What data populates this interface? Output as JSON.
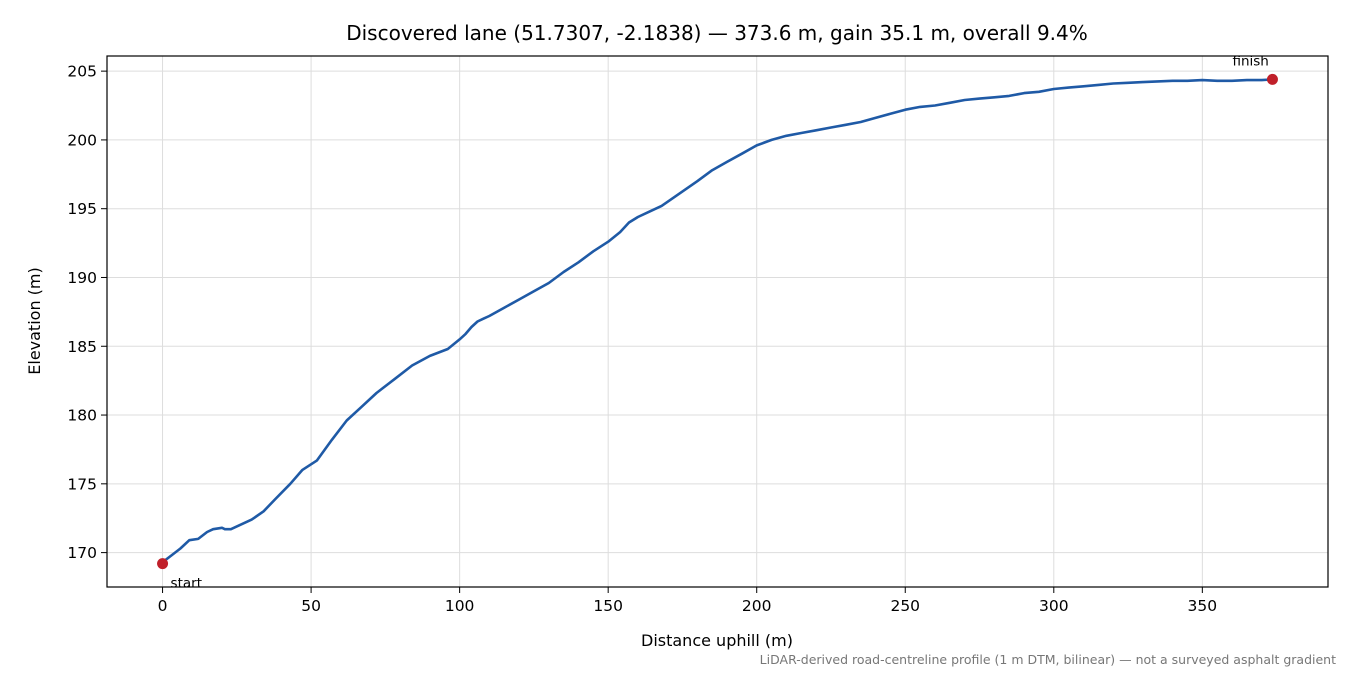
{
  "chart_data": {
    "type": "line",
    "title": "Discovered lane (51.7307, -2.1838) — 373.6 m, gain 35.1 m, overall 9.4%",
    "xlabel": "Distance uphill (m)",
    "ylabel": "Elevation (m)",
    "xlim": [
      -18.7,
      392.3
    ],
    "ylim": [
      167.5,
      206.1
    ],
    "xticks": [
      0,
      50,
      100,
      150,
      200,
      250,
      300,
      350
    ],
    "yticks": [
      170,
      175,
      180,
      185,
      190,
      195,
      200,
      205
    ],
    "grid": true,
    "line_color": "#1f5aa6",
    "marker_color": "#c0202a",
    "series": [
      {
        "x": [
          0,
          3,
          6,
          9,
          12,
          15,
          17,
          20,
          21,
          23,
          26,
          30,
          34,
          38,
          43,
          47,
          52,
          57,
          62,
          67,
          72,
          78,
          84,
          90,
          96,
          100,
          102,
          104,
          106,
          108,
          110,
          115,
          120,
          125,
          130,
          135,
          140,
          145,
          150,
          154,
          157,
          160,
          164,
          168,
          172,
          176,
          180,
          185,
          190,
          195,
          200,
          205,
          210,
          215,
          220,
          225,
          230,
          235,
          240,
          245,
          250,
          255,
          260,
          265,
          270,
          275,
          280,
          285,
          290,
          295,
          300,
          305,
          310,
          315,
          320,
          325,
          330,
          335,
          340,
          345,
          350,
          355,
          360,
          365,
          370,
          373.6
        ],
        "y": [
          169.3,
          169.8,
          170.3,
          170.9,
          171.0,
          171.5,
          171.7,
          171.8,
          171.7,
          171.7,
          172.0,
          172.4,
          173.0,
          173.9,
          175.0,
          176.0,
          176.7,
          178.2,
          179.6,
          180.6,
          181.6,
          182.6,
          183.6,
          184.3,
          184.8,
          185.5,
          185.9,
          186.4,
          186.8,
          187.0,
          187.2,
          187.8,
          188.4,
          189.0,
          189.6,
          190.4,
          191.1,
          191.9,
          192.6,
          193.3,
          194.0,
          194.4,
          194.8,
          195.2,
          195.8,
          196.4,
          197.0,
          197.8,
          198.4,
          199.0,
          199.6,
          200.0,
          200.3,
          200.5,
          200.7,
          200.9,
          201.1,
          201.3,
          201.6,
          201.9,
          202.2,
          202.4,
          202.5,
          202.7,
          202.9,
          203.0,
          203.1,
          203.2,
          203.4,
          203.5,
          203.7,
          203.8,
          203.9,
          204.0,
          204.1,
          204.15,
          204.2,
          204.25,
          204.3,
          204.3,
          204.35,
          204.3,
          204.3,
          204.35,
          204.35,
          204.4
        ]
      }
    ],
    "annotations": [
      {
        "text": "start",
        "x": 0,
        "y": 169.2
      },
      {
        "text": "finish",
        "x": 373.6,
        "y": 204.4
      }
    ],
    "footnote": "LiDAR-derived road-centreline profile (1 m DTM, bilinear) — not a surveyed asphalt gradient"
  }
}
